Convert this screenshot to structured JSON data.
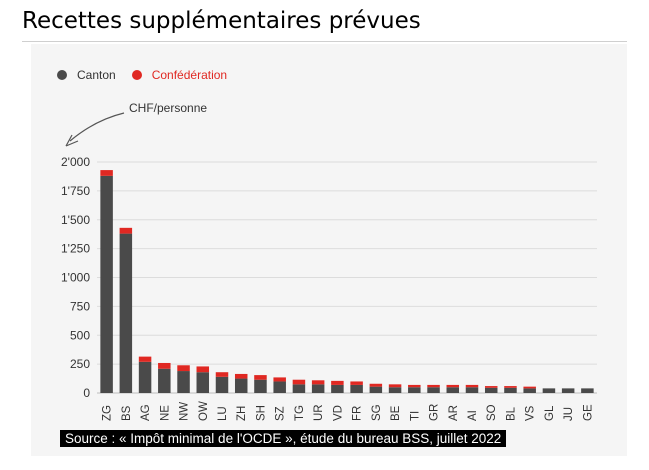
{
  "page": {
    "title": "Recettes supplémentaires prévues"
  },
  "chart_data": {
    "type": "bar",
    "stacked": true,
    "categories": [
      "ZG",
      "BS",
      "AG",
      "NE",
      "NW",
      "OW",
      "LU",
      "ZH",
      "SH",
      "SZ",
      "TG",
      "UR",
      "VD",
      "FR",
      "SG",
      "BE",
      "TI",
      "GR",
      "AR",
      "AI",
      "SO",
      "BL",
      "VS",
      "GL",
      "JU",
      "GE"
    ],
    "series": [
      {
        "name": "Canton",
        "color": "#4a4a4a",
        "values": [
          1880,
          1380,
          270,
          210,
          190,
          180,
          140,
          125,
          115,
          100,
          75,
          75,
          70,
          70,
          55,
          50,
          50,
          50,
          50,
          50,
          45,
          45,
          40,
          40,
          40,
          40
        ]
      },
      {
        "name": "Confédération",
        "color": "#e02822",
        "values": [
          50,
          50,
          45,
          50,
          50,
          50,
          40,
          40,
          40,
          35,
          40,
          35,
          35,
          30,
          25,
          25,
          20,
          20,
          20,
          20,
          15,
          15,
          15,
          0,
          0,
          0
        ]
      }
    ],
    "ylim": [
      0,
      2000
    ],
    "yticks": [
      "0",
      "250",
      "500",
      "750",
      "1'000",
      "1'250",
      "1'500",
      "1'750",
      "2'000"
    ],
    "ytick_values": [
      0,
      250,
      500,
      750,
      1000,
      1250,
      1500,
      1750,
      2000
    ],
    "y_unit_label": "CHF/personne",
    "legend_position": "top-left",
    "grid": true,
    "source": "Source : « Impôt minimal de l'OCDE », étude du bureau BSS, juillet 2022"
  }
}
